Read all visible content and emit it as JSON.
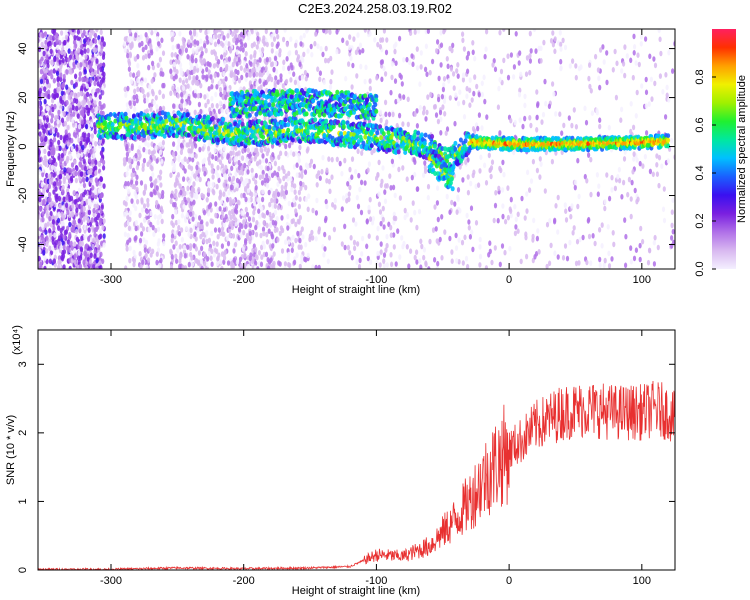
{
  "title": "C2E3.2024.258.03.19.R02",
  "colors": {
    "snr_line": "#e83030",
    "colormap": [
      "#f4f0ff",
      "#d8b8f0",
      "#b070e8",
      "#7a20e0",
      "#3a10f0",
      "#1a60ff",
      "#00c0ff",
      "#00e8a0",
      "#20f030",
      "#a0f000",
      "#f0f000",
      "#ffa000",
      "#ff3000",
      "#ff2060"
    ]
  },
  "chart_data": [
    {
      "type": "heatmap",
      "title": "C2E3.2024.258.03.19.R02",
      "xlabel": "Height of straight line (km)",
      "ylabel": "Frequency (Hz)",
      "xlim": [
        -355,
        125
      ],
      "ylim": [
        -50,
        48
      ],
      "xticks": [
        -300,
        -200,
        -100,
        0,
        100
      ],
      "yticks": [
        -40,
        -20,
        0,
        20,
        40
      ],
      "colorbar": {
        "label": "Normalized spectral amplitude",
        "range": [
          0.0,
          1.0
        ],
        "ticks": [
          "0.0",
          "0.2",
          "0.4",
          "0.6",
          "0.8"
        ]
      },
      "ridges": [
        {
          "name": "main",
          "x": [
            -310,
            -250,
            -200,
            -160,
            -120,
            -80,
            -60,
            -45,
            -30,
            0,
            50,
            120
          ],
          "y": [
            8,
            9,
            5,
            7,
            5,
            2,
            0,
            -6,
            2,
            1,
            1,
            2
          ]
        },
        {
          "name": "upper",
          "x": [
            -210,
            -180,
            -150,
            -120,
            -100
          ],
          "y": [
            17,
            18,
            18,
            17,
            16
          ]
        },
        {
          "name": "lower-tail",
          "x": [
            -60,
            -50,
            -42
          ],
          "y": [
            -5,
            -10,
            -14
          ]
        }
      ]
    },
    {
      "type": "line",
      "xlabel": "Height of straight line (km)",
      "ylabel": "SNR (10 * v/v)",
      "multiplier": "(x10⁴)",
      "xlim": [
        -355,
        125
      ],
      "ylim": [
        0,
        3.5
      ],
      "xticks": [
        -300,
        -200,
        -100,
        0,
        100
      ],
      "yticks": [
        0,
        1,
        2,
        3
      ],
      "series": [
        {
          "x": [
            -355,
            -300,
            -250,
            -200,
            -150,
            -120,
            -100,
            -80,
            -60,
            -50,
            -40,
            -30,
            -20,
            -10,
            0,
            10,
            20,
            30,
            40,
            60,
            80,
            100,
            110,
            120,
            125
          ],
          "y": [
            0.01,
            0.01,
            0.03,
            0.02,
            0.03,
            0.05,
            0.22,
            0.2,
            0.35,
            0.55,
            0.75,
            1.0,
            1.3,
            1.55,
            1.75,
            1.9,
            2.1,
            2.2,
            2.3,
            2.35,
            2.3,
            2.3,
            2.35,
            2.3,
            2.2
          ]
        }
      ]
    }
  ]
}
